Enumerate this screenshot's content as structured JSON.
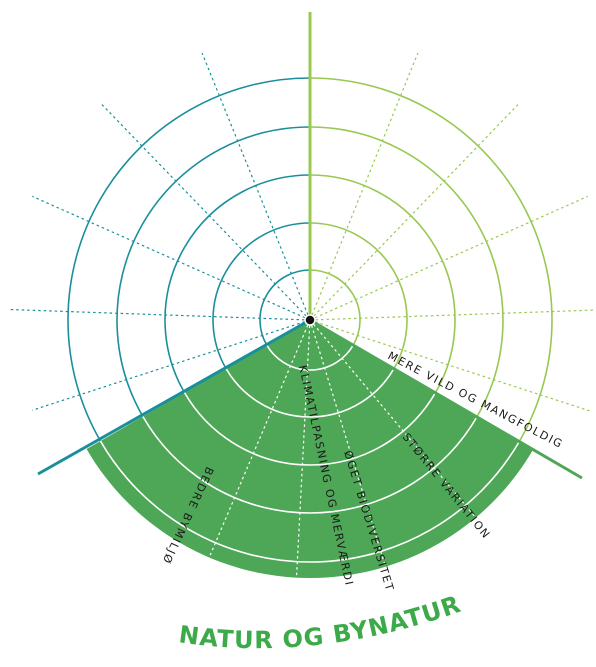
{
  "title": "NATUR OG BYNATUR",
  "spokes": [
    {
      "label": "MERE VILD OG MANGFOLDIG"
    },
    {
      "label": "STØRRE VARIATION"
    },
    {
      "label": "ØGET BIODIVERSITET"
    },
    {
      "label": "KLIMATILPASNING OG MERVÆRDI"
    },
    {
      "label": "BEDRE BYMILJØ"
    }
  ],
  "colors": {
    "teal": "#1a8f9c",
    "light_green": "#98c852",
    "sector_green": "#4ea757",
    "title_green": "#3daa4a",
    "center_dot": "#111111"
  }
}
